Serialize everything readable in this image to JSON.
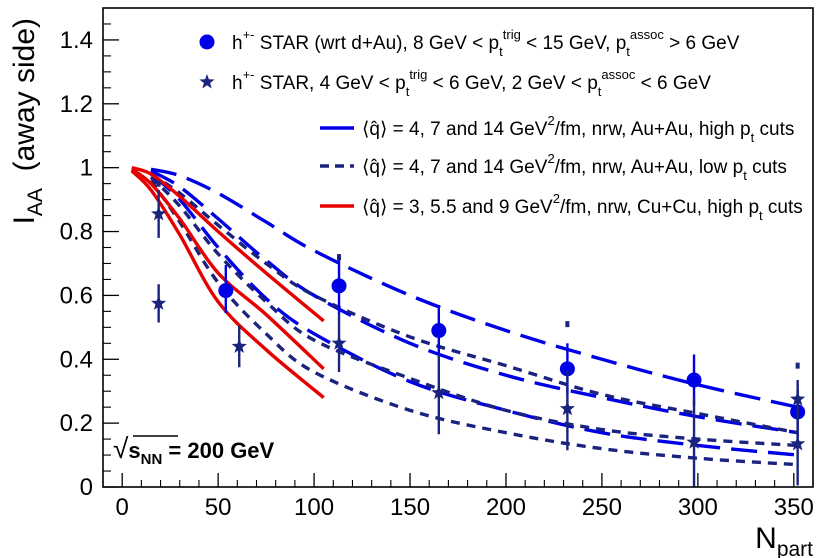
{
  "chart_data": {
    "type": "scatter",
    "xlabel": "N",
    "xlabel_sub": "part",
    "ylabel": "I",
    "ylabel_sub": "AA",
    "ylabel_suffix": "(away side)",
    "xlim": [
      -10,
      360
    ],
    "ylim": [
      0,
      1.5
    ],
    "x_ticks": [
      0,
      50,
      100,
      150,
      200,
      250,
      300,
      350
    ],
    "y_ticks": [
      0,
      0.2,
      0.4,
      0.6,
      0.8,
      1,
      1.2,
      1.4
    ],
    "y_tick_labels": [
      "0",
      "0.2",
      "0.4",
      "0.6",
      "0.8",
      "1",
      "1.2",
      "1.4"
    ],
    "annotation": {
      "prefix": "√",
      "base": "s",
      "sub": "NN",
      "rest": "= 200 GeV"
    },
    "legend_items": [
      {
        "marker": "circle",
        "color": "#0000e6",
        "parts": [
          {
            "t": "h"
          },
          {
            "t": "+-",
            "sup": true
          },
          {
            "t": " STAR (wrt d+Au), 8 GeV < p"
          },
          {
            "t": "t",
            "sub": true
          },
          {
            "t": "trig",
            "sup": true
          },
          {
            "t": " < 15 GeV, p"
          },
          {
            "t": "t",
            "sub": true
          },
          {
            "t": "assoc",
            "sup": true
          },
          {
            "t": " > 6 GeV"
          }
        ]
      },
      {
        "marker": "star",
        "color": "#1a237e",
        "parts": [
          {
            "t": "h"
          },
          {
            "t": "+-",
            "sup": true
          },
          {
            "t": " STAR, 4 GeV < p"
          },
          {
            "t": "t",
            "sub": true
          },
          {
            "t": "trig",
            "sup": true
          },
          {
            "t": " < 6 GeV, 2 GeV < p"
          },
          {
            "t": "t",
            "sub": true
          },
          {
            "t": "assoc",
            "sup": true
          },
          {
            "t": " < 6 GeV"
          }
        ]
      },
      {
        "marker": "line-solid",
        "color": "#0000e6",
        "parts": [
          {
            "t": "⟨q̂⟩ = 4, 7 and 14 GeV"
          },
          {
            "t": "2",
            "sup": true
          },
          {
            "t": "/fm, nrw, Au+Au, high p"
          },
          {
            "t": "t",
            "sub": true
          },
          {
            "t": " cuts"
          }
        ]
      },
      {
        "marker": "line-dotted",
        "color": "#1a237e",
        "parts": [
          {
            "t": "⟨q̂⟩ = 4, 7 and 14 GeV"
          },
          {
            "t": "2",
            "sup": true
          },
          {
            "t": "/fm, nrw, Au+Au, low p"
          },
          {
            "t": "t",
            "sub": true
          },
          {
            "t": " cuts"
          }
        ]
      },
      {
        "marker": "line-solid",
        "color": "#e60000",
        "parts": [
          {
            "t": "⟨q̂⟩ = 3, 5.5 and 9 GeV"
          },
          {
            "t": "2",
            "sup": true
          },
          {
            "t": "/fm, nrw, Cu+Cu, high p"
          },
          {
            "t": "t",
            "sub": true
          },
          {
            "t": " cuts"
          }
        ]
      }
    ],
    "series": [
      {
        "kind": "points",
        "marker": "circle",
        "color": "#0000e6",
        "points": [
          {
            "x": 54,
            "y": 0.615,
            "err_lo": 0.07,
            "err_hi": 0.08
          },
          {
            "x": 113,
            "y": 0.63,
            "err_lo": 0.09,
            "err_hi": 0.09
          },
          {
            "x": 165,
            "y": 0.49,
            "err_lo": 0.08,
            "err_hi": 0.08
          },
          {
            "x": 232,
            "y": 0.37,
            "err_lo": 0.08,
            "err_hi": 0.08
          },
          {
            "x": 298,
            "y": 0.335,
            "err_lo": 0.08,
            "err_hi": 0.08
          },
          {
            "x": 352,
            "y": 0.235,
            "err_lo": 0.08,
            "err_hi": 0.07
          }
        ]
      },
      {
        "kind": "points",
        "marker": "star",
        "color": "#1a237e",
        "points": [
          {
            "x": 19,
            "y": 0.855,
            "err_lo": 0.075,
            "err_hi": 0.075,
            "sys_hi": 0.95
          },
          {
            "x": 19,
            "y": 0.575,
            "err_lo": 0.06,
            "err_hi": 0.06
          },
          {
            "x": 61,
            "y": 0.44,
            "err_lo": 0.065,
            "err_hi": 0.065
          },
          {
            "x": 113,
            "y": 0.45,
            "err_lo": 0.09,
            "err_hi": 0.09,
            "sys_hi": 0.72
          },
          {
            "x": 165,
            "y": 0.295,
            "err_lo": 0.13,
            "err_hi": 0.12
          },
          {
            "x": 232,
            "y": 0.245,
            "err_lo": 0.13,
            "err_hi": 0.12,
            "sys_hi": 0.51
          },
          {
            "x": 298,
            "y": 0.14,
            "err_lo": 0.14,
            "err_hi": 0.14
          },
          {
            "x": 352,
            "y": 0.135,
            "err_lo": 0.13,
            "err_hi": 0.13
          },
          {
            "x": 352,
            "y": 0.275,
            "err_lo": 0.07,
            "err_hi": 0.06,
            "sys_hi": 0.38
          }
        ]
      },
      {
        "kind": "curve",
        "color": "#0000e6",
        "style": "longdash",
        "x": [
          15,
          30,
          50,
          75,
          100,
          150,
          200,
          250,
          300,
          352
        ],
        "y": [
          0.995,
          0.975,
          0.92,
          0.83,
          0.74,
          0.6,
          0.49,
          0.4,
          0.32,
          0.25
        ]
      },
      {
        "kind": "curve",
        "color": "#0000e6",
        "style": "longdash",
        "x": [
          15,
          30,
          50,
          75,
          100,
          150,
          200,
          250,
          300,
          352
        ],
        "y": [
          0.99,
          0.94,
          0.84,
          0.71,
          0.6,
          0.45,
          0.35,
          0.28,
          0.22,
          0.17
        ]
      },
      {
        "kind": "curve",
        "color": "#0000e6",
        "style": "longdash",
        "x": [
          15,
          30,
          50,
          75,
          100,
          150,
          200,
          250,
          300,
          352
        ],
        "y": [
          0.98,
          0.9,
          0.75,
          0.59,
          0.48,
          0.33,
          0.24,
          0.17,
          0.13,
          0.1
        ]
      },
      {
        "kind": "curve",
        "color": "#1a237e",
        "style": "dotted",
        "x": [
          15,
          30,
          50,
          75,
          100,
          150,
          200,
          250,
          300,
          352
        ],
        "y": [
          0.98,
          0.92,
          0.82,
          0.7,
          0.6,
          0.47,
          0.38,
          0.29,
          0.23,
          0.17
        ]
      },
      {
        "kind": "curve",
        "color": "#1a237e",
        "style": "dotted",
        "x": [
          15,
          30,
          50,
          75,
          100,
          150,
          200,
          250,
          300,
          352
        ],
        "y": [
          0.97,
          0.88,
          0.73,
          0.58,
          0.46,
          0.34,
          0.24,
          0.18,
          0.15,
          0.13
        ]
      },
      {
        "kind": "curve",
        "color": "#1a237e",
        "style": "dotted",
        "x": [
          15,
          30,
          50,
          75,
          100,
          150,
          200,
          250,
          300,
          352
        ],
        "y": [
          0.96,
          0.83,
          0.64,
          0.48,
          0.36,
          0.24,
          0.17,
          0.12,
          0.09,
          0.07
        ]
      },
      {
        "kind": "curve",
        "color": "#e60000",
        "style": "solid",
        "x": [
          5,
          15,
          30,
          50,
          75,
          105
        ],
        "y": [
          1.0,
          0.98,
          0.91,
          0.8,
          0.67,
          0.52
        ]
      },
      {
        "kind": "curve",
        "color": "#e60000",
        "style": "solid",
        "x": [
          5,
          15,
          30,
          50,
          75,
          105
        ],
        "y": [
          0.995,
          0.95,
          0.84,
          0.67,
          0.54,
          0.37
        ]
      },
      {
        "kind": "curve",
        "color": "#e60000",
        "style": "solid",
        "x": [
          5,
          15,
          30,
          50,
          75,
          105
        ],
        "y": [
          0.99,
          0.93,
          0.79,
          0.58,
          0.43,
          0.28
        ]
      }
    ]
  }
}
